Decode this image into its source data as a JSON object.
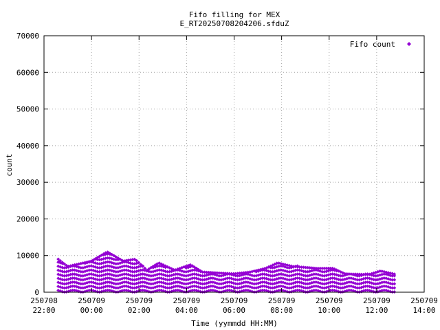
{
  "chart_data": {
    "type": "scatter",
    "title": "Fifo filling for MEX",
    "subtitle": "E_RT20250708204206.sfduZ",
    "xlabel": "Time (yymmdd HH:MM)",
    "ylabel": "count",
    "xlim": [
      "2025-07-08 22:00",
      "2025-07-09 14:00"
    ],
    "ylim": [
      0,
      70000
    ],
    "grid": true,
    "legend_position": "top-right",
    "y_ticks": [
      "0",
      "10000",
      "20000",
      "30000",
      "40000",
      "50000",
      "60000",
      "70000"
    ],
    "x_ticks": [
      {
        "date": "250708",
        "time": "22:00"
      },
      {
        "date": "250709",
        "time": "00:00"
      },
      {
        "date": "250709",
        "time": "02:00"
      },
      {
        "date": "250709",
        "time": "04:00"
      },
      {
        "date": "250709",
        "time": "06:00"
      },
      {
        "date": "250709",
        "time": "08:00"
      },
      {
        "date": "250709",
        "time": "10:00"
      },
      {
        "date": "250709",
        "time": "12:00"
      },
      {
        "date": "250709",
        "time": "14:00"
      }
    ],
    "series": [
      {
        "name": "Fifo count",
        "color": "#9400d3",
        "marker": "diamond",
        "envelope": [
          {
            "t": "2025-07-08 22:36",
            "y": 9000
          },
          {
            "t": "2025-07-08 23:00",
            "y": 7000
          },
          {
            "t": "2025-07-08 23:40",
            "y": 8000
          },
          {
            "t": "2025-07-09 00:00",
            "y": 8500
          },
          {
            "t": "2025-07-09 00:40",
            "y": 11000
          },
          {
            "t": "2025-07-09 01:20",
            "y": 8500
          },
          {
            "t": "2025-07-09 01:50",
            "y": 9000
          },
          {
            "t": "2025-07-09 02:20",
            "y": 6000
          },
          {
            "t": "2025-07-09 02:50",
            "y": 8000
          },
          {
            "t": "2025-07-09 03:30",
            "y": 6000
          },
          {
            "t": "2025-07-09 04:10",
            "y": 7500
          },
          {
            "t": "2025-07-09 04:40",
            "y": 5500
          },
          {
            "t": "2025-07-09 06:00",
            "y": 5000
          },
          {
            "t": "2025-07-09 06:40",
            "y": 5500
          },
          {
            "t": "2025-07-09 07:20",
            "y": 6500
          },
          {
            "t": "2025-07-09 07:50",
            "y": 8000
          },
          {
            "t": "2025-07-09 08:30",
            "y": 7000
          },
          {
            "t": "2025-07-09 09:30",
            "y": 6500
          },
          {
            "t": "2025-07-09 10:10",
            "y": 6500
          },
          {
            "t": "2025-07-09 10:40",
            "y": 5000
          },
          {
            "t": "2025-07-09 11:40",
            "y": 4800
          },
          {
            "t": "2025-07-09 12:10",
            "y": 5800
          },
          {
            "t": "2025-07-09 12:50",
            "y": 4800
          }
        ]
      }
    ]
  }
}
